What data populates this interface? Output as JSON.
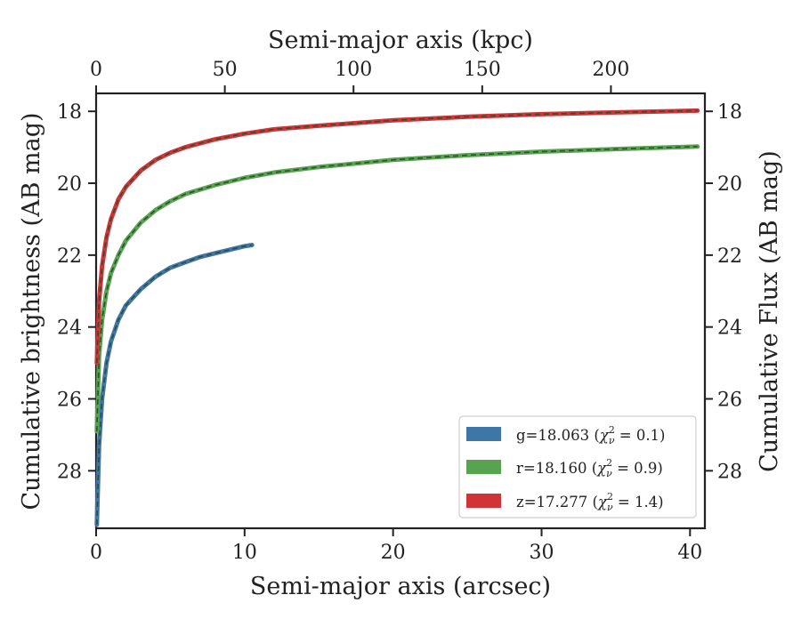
{
  "chart_data": {
    "type": "line",
    "xlabel": "Semi-major axis (arcsec)",
    "ylabel": "Cumulative brightness (AB mag)",
    "ylabel_right": "Cumulative Flux (AB mag)",
    "xlabel_top": "Semi-major axis (kpc)",
    "xlim": [
      0,
      41
    ],
    "ylim": [
      29.6,
      17.5
    ],
    "y_inverted": true,
    "xlim_top": [
      0,
      236.5
    ],
    "x_ticks": [
      0,
      10,
      20,
      30,
      40
    ],
    "x_tick_labels": [
      "0",
      "10",
      "20",
      "30",
      "40"
    ],
    "x_top_ticks": [
      0,
      50,
      100,
      150,
      200
    ],
    "x_top_tick_labels": [
      "0",
      "50",
      "100",
      "150",
      "200"
    ],
    "y_ticks": [
      18,
      20,
      22,
      24,
      26,
      28
    ],
    "y_tick_labels": [
      "18",
      "20",
      "22",
      "24",
      "26",
      "28"
    ],
    "legend_position": "lower-right",
    "grid": false,
    "fit_line_color": "#2f4f2f",
    "series": [
      {
        "name": "g=18.063 (χ²ᵥ = 0.1)",
        "label_main": "g=18.063 (",
        "label_chi": "χ",
        "label_sup": "2",
        "label_sub": "ν",
        "label_value": " = 0.1)",
        "color": "#3e76a8",
        "x": [
          0.05,
          0.2,
          0.4,
          0.7,
          1.0,
          1.5,
          2.0,
          3.0,
          4.0,
          5.0,
          6.0,
          7.0,
          8.0,
          9.0,
          10.0,
          10.5
        ],
        "values": [
          29.5,
          27.3,
          26.0,
          25.0,
          24.4,
          23.8,
          23.4,
          22.95,
          22.6,
          22.35,
          22.2,
          22.05,
          21.95,
          21.85,
          21.75,
          21.72
        ]
      },
      {
        "name": "r=18.160 (χ²ᵥ = 0.9)",
        "label_main": "r=18.160 (",
        "label_chi": "χ",
        "label_sup": "2",
        "label_sub": "ν",
        "label_value": " = 0.9)",
        "color": "#57a34f",
        "x": [
          0.05,
          0.2,
          0.4,
          0.7,
          1.0,
          1.5,
          2.0,
          3.0,
          4.0,
          5.0,
          6.0,
          8.0,
          10.0,
          12.0,
          15.0,
          20.0,
          25.0,
          30.0,
          35.0,
          40.5
        ],
        "values": [
          26.9,
          24.8,
          23.8,
          23.0,
          22.5,
          22.0,
          21.6,
          21.1,
          20.75,
          20.5,
          20.3,
          20.05,
          19.85,
          19.7,
          19.55,
          19.35,
          19.22,
          19.12,
          19.05,
          18.98
        ]
      },
      {
        "name": "z=17.277 (χ²ᵥ = 1.4)",
        "label_main": "z=17.277 (",
        "label_chi": "χ",
        "label_sup": "2",
        "label_sub": "ν",
        "label_value": " = 1.4)",
        "color": "#d13437",
        "x": [
          0.05,
          0.2,
          0.4,
          0.7,
          1.0,
          1.5,
          2.0,
          3.0,
          4.0,
          5.0,
          6.0,
          8.0,
          10.0,
          12.0,
          15.0,
          20.0,
          25.0,
          30.0,
          35.0,
          40.5
        ],
        "values": [
          25.0,
          23.3,
          22.3,
          21.5,
          21.0,
          20.45,
          20.1,
          19.65,
          19.35,
          19.15,
          19.0,
          18.78,
          18.62,
          18.5,
          18.4,
          18.25,
          18.15,
          18.08,
          18.03,
          17.98
        ]
      }
    ]
  }
}
